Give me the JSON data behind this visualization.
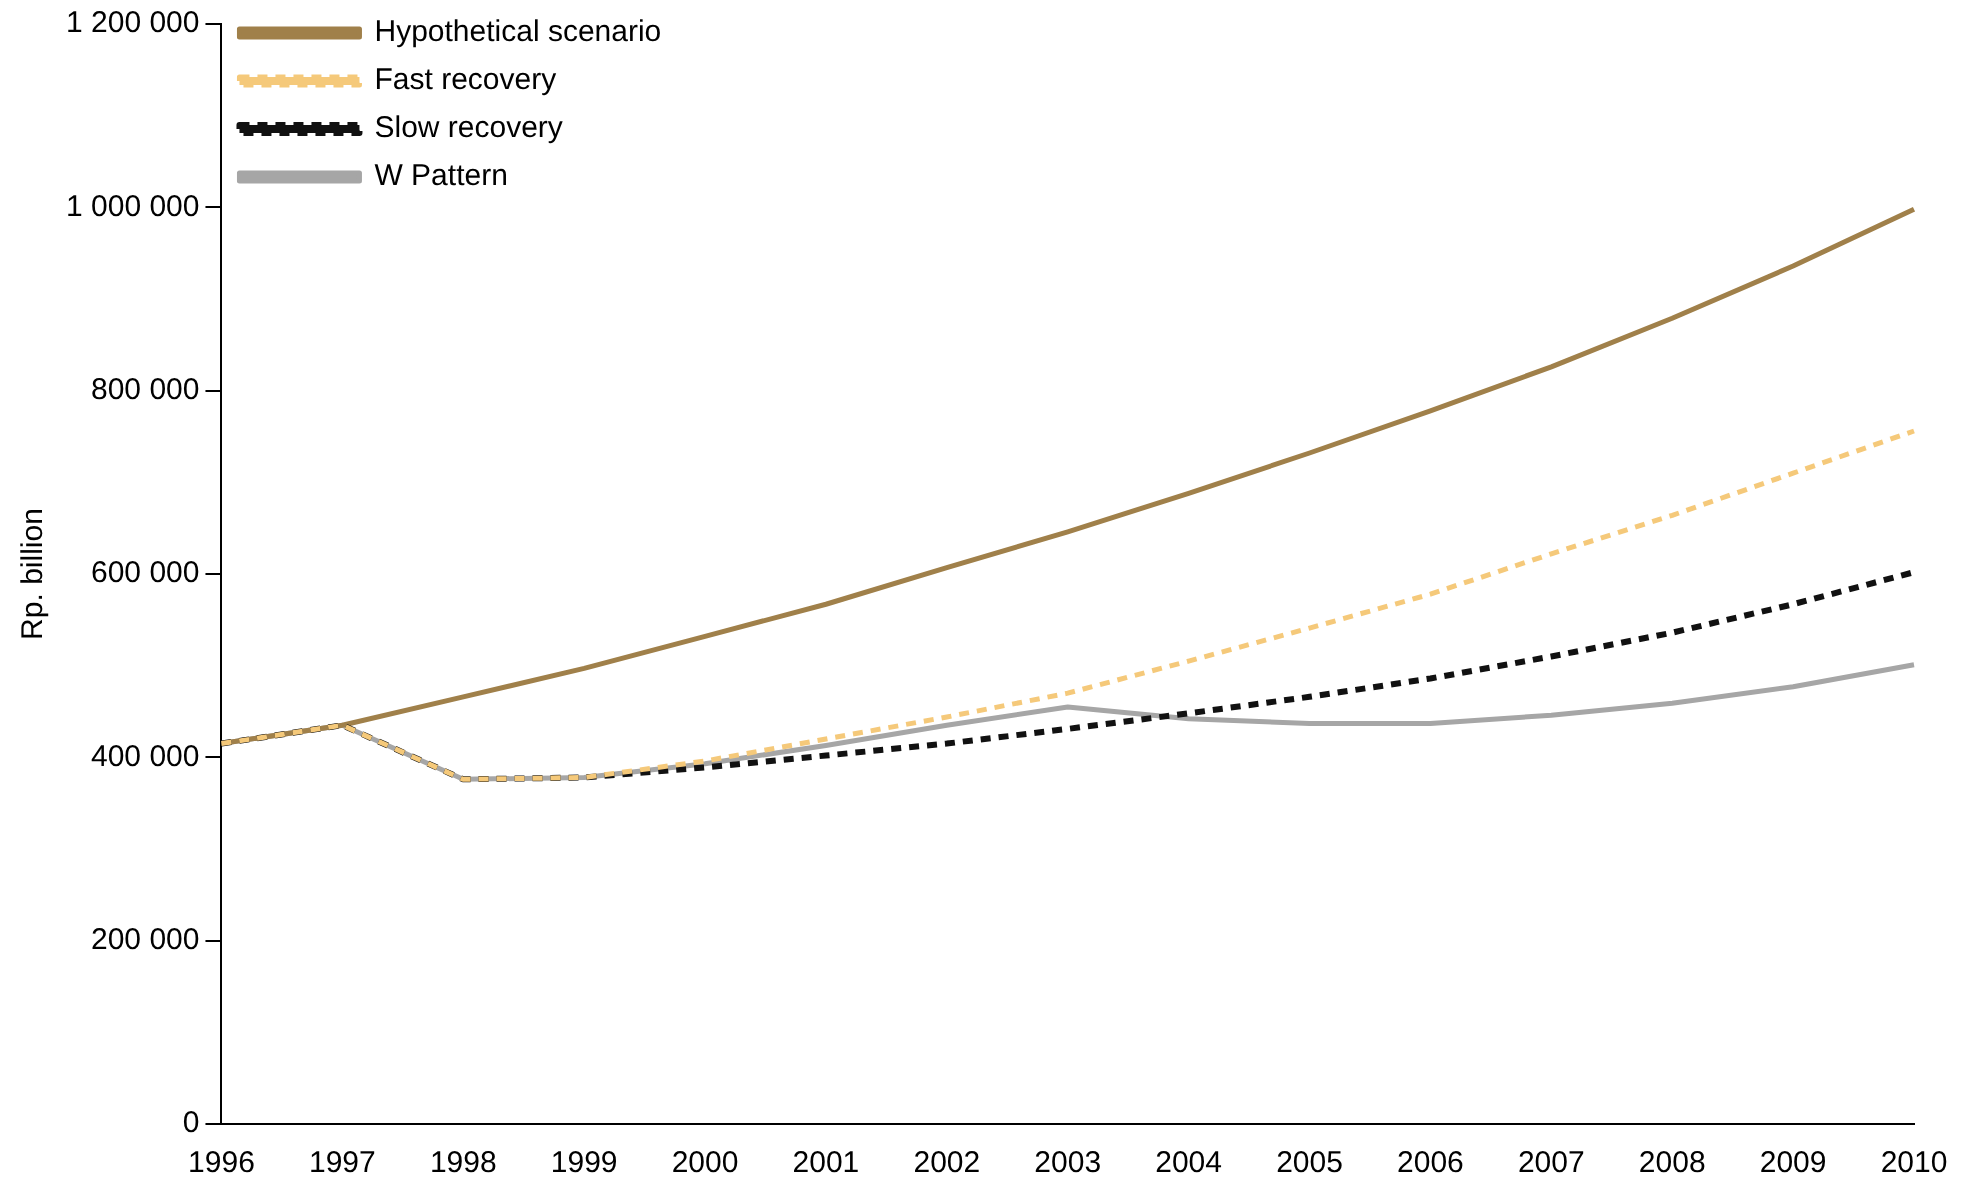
{
  "chart_data": {
    "type": "line",
    "ylabel": "Rp. billion",
    "categories": [
      "1996",
      "1997",
      "1998",
      "1999",
      "2000",
      "2001",
      "2002",
      "2003",
      "2004",
      "2005",
      "2006",
      "2007",
      "2008",
      "2009",
      "2010"
    ],
    "series": [
      {
        "name": "Hypothetical scenario",
        "color": "#a0804a",
        "line_style": "solid",
        "values": [
          415000,
          435000,
          466000,
          497000,
          532000,
          567000,
          607000,
          646000,
          688000,
          732000,
          778000,
          826000,
          879000,
          936000,
          998000
        ]
      },
      {
        "name": "Fast recovery",
        "color": "#f5c97a",
        "line_style": "dashed",
        "values": [
          415000,
          435000,
          376000,
          378000,
          396000,
          420000,
          444000,
          470000,
          505000,
          541000,
          578000,
          622000,
          664000,
          710000,
          756000
        ]
      },
      {
        "name": "Slow recovery",
        "color": "#111111",
        "line_style": "dashed",
        "values": [
          415000,
          435000,
          376000,
          378000,
          389000,
          402000,
          415000,
          431000,
          448000,
          466000,
          486000,
          510000,
          536000,
          567000,
          602000
        ]
      },
      {
        "name": "W Pattern",
        "color": "#a6a6a6",
        "line_style": "solid",
        "values": [
          415000,
          435000,
          376000,
          378000,
          393000,
          413000,
          435000,
          455000,
          442000,
          437000,
          437000,
          446000,
          459000,
          477000,
          501000
        ]
      }
    ],
    "ylim": [
      0,
      1200000
    ],
    "yticks": [
      0,
      {
        "value": 200000,
        "label": "200 000"
      },
      {
        "value": 400000,
        "label": "400 000"
      },
      {
        "value": 600000,
        "label": "600 000"
      },
      {
        "value": 800000,
        "label": "800 000"
      },
      {
        "value": 1000000,
        "label": "1 000 000"
      },
      {
        "value": 1200000,
        "label": "1 200 000"
      }
    ],
    "grid": false,
    "legend": "top left",
    "marker": "none"
  }
}
